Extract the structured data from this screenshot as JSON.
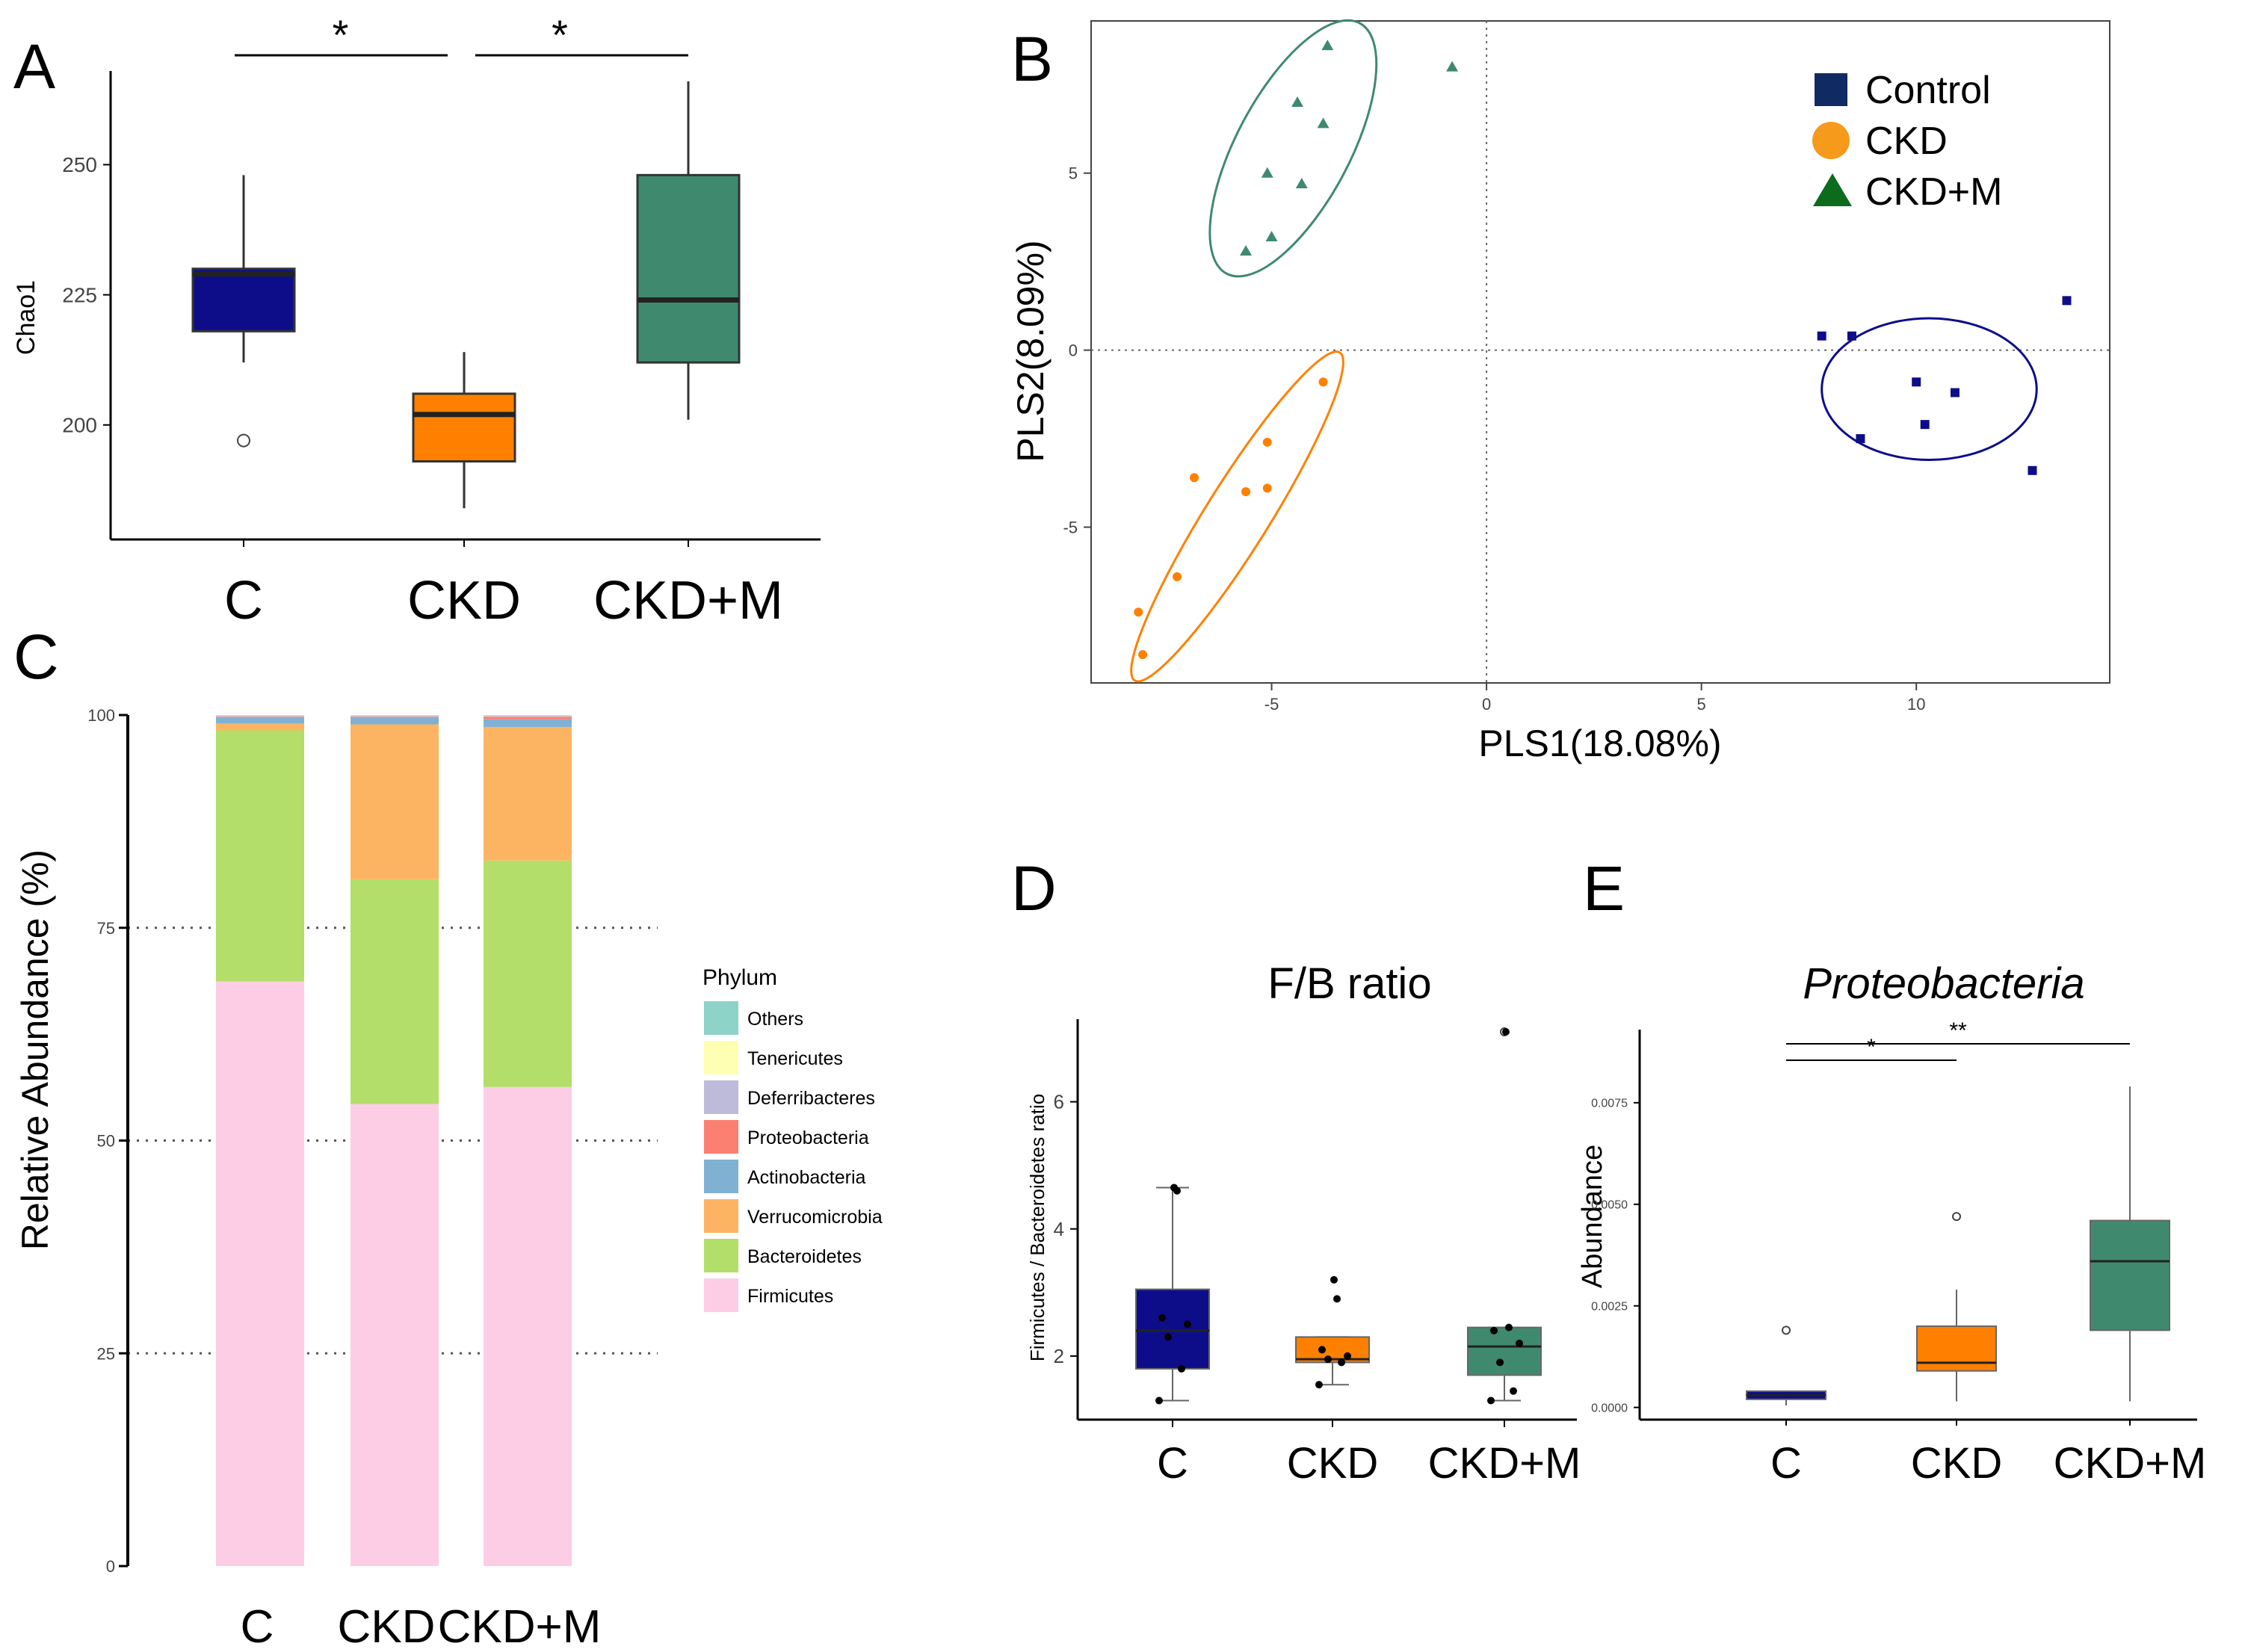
{
  "colors": {
    "control": "#0d0d8a",
    "ckd": "#ff8000",
    "ckdm": "#3f8a6e",
    "legend_control": "#102a63",
    "legend_ckd": "#f59a1b",
    "legend_ckdm": "#0d6b1c",
    "axis": "#000000",
    "grid_dotted": "#666666"
  },
  "chart_data": [
    {
      "panel": "A",
      "type": "box",
      "panel_label": "A",
      "ylabel": "Chao1",
      "categories": [
        "C",
        "CKD",
        "CKD+M"
      ],
      "ylim": [
        178,
        268
      ],
      "yticks": [
        200,
        225,
        250
      ],
      "boxes": [
        {
          "group": "C",
          "whisker_low": 212,
          "q1": 218,
          "median": 229,
          "q3": 230,
          "whisker_high": 248,
          "outliers": [
            197
          ],
          "color_key": "control"
        },
        {
          "group": "CKD",
          "whisker_low": 184,
          "q1": 193,
          "median": 202,
          "q3": 206,
          "whisker_high": 214,
          "outliers": [],
          "color_key": "ckd"
        },
        {
          "group": "CKD+M",
          "whisker_low": 201,
          "q1": 212,
          "median": 224,
          "q3": 248,
          "whisker_high": 266,
          "outliers": [],
          "color_key": "ckdm"
        }
      ],
      "significance": [
        {
          "from": "C",
          "to": "CKD",
          "label": "*"
        },
        {
          "from": "CKD",
          "to": "CKD+M",
          "label": "*"
        }
      ]
    },
    {
      "panel": "B",
      "type": "scatter",
      "panel_label": "B",
      "xlabel": "PLS1(18.08%)",
      "ylabel": "PLS2(8.09%)",
      "xlim": [
        -9.2,
        14.5
      ],
      "ylim": [
        -9.4,
        9.3
      ],
      "xticks": [
        -5,
        0,
        5,
        10
      ],
      "yticks": [
        -5,
        0,
        5
      ],
      "legend_position": "top-right",
      "series": [
        {
          "name": "Control",
          "marker": "square",
          "color_key": "control",
          "legend_color_key": "legend_control",
          "x": [
            7.8,
            8.5,
            8.7,
            10.0,
            10.2,
            10.9,
            12.7,
            13.5
          ],
          "y": [
            0.4,
            0.4,
            -2.5,
            -0.9,
            -2.1,
            -1.2,
            -3.4,
            1.4
          ],
          "ellipse": {
            "cx": 10.3,
            "cy": -1.1,
            "rx": 2.5,
            "ry": 2.0,
            "angle": 0
          }
        },
        {
          "name": "CKD",
          "marker": "circle",
          "color_key": "ckd",
          "legend_color_key": "legend_ckd",
          "x": [
            -3.8,
            -5.1,
            -5.1,
            -5.6,
            -6.8,
            -7.2,
            -8.1,
            -8.0
          ],
          "y": [
            -0.9,
            -2.6,
            -3.9,
            -4.0,
            -3.6,
            -6.4,
            -7.4,
            -8.6
          ],
          "ellipse": {
            "cx": -5.8,
            "cy": -4.7,
            "rx": 4.5,
            "ry": 0.9,
            "angle": 58
          }
        },
        {
          "name": "CKD+M",
          "marker": "triangle",
          "color_key": "ckdm",
          "legend_color_key": "legend_ckdm",
          "x": [
            -3.7,
            -4.4,
            -3.8,
            -5.1,
            -4.3,
            -5.0,
            -5.6,
            -0.8
          ],
          "y": [
            8.6,
            7.0,
            6.4,
            5.0,
            4.7,
            3.2,
            2.8,
            8.0
          ],
          "ellipse": {
            "cx": -4.5,
            "cy": 5.7,
            "rx": 3.3,
            "ry": 1.6,
            "angle": 62
          }
        }
      ]
    },
    {
      "panel": "C",
      "type": "stacked_bar",
      "panel_label": "C",
      "ylabel": "Relative Abundance (%)",
      "categories": [
        "C",
        "CKD",
        "CKD+M"
      ],
      "ylim": [
        0,
        100
      ],
      "yticks": [
        0,
        25,
        50,
        75,
        100
      ],
      "legend_title": "Phylum",
      "legend_position": "right",
      "legend_order": [
        "Others",
        "Tenericutes",
        "Deferribacteres",
        "Proteobacteria",
        "Actinobacteria",
        "Verrucomicrobia",
        "Bacteroidetes",
        "Firmicutes"
      ],
      "series": [
        {
          "name": "Firmicutes",
          "color": "#fccde5",
          "values": [
            68.7,
            54.3,
            56.3
          ]
        },
        {
          "name": "Bacteroidetes",
          "color": "#b3de69",
          "values": [
            29.5,
            26.4,
            26.6
          ]
        },
        {
          "name": "Verrucomicrobia",
          "color": "#fdb462",
          "values": [
            0.8,
            18.2,
            15.7
          ]
        },
        {
          "name": "Actinobacteria",
          "color": "#80b1d3",
          "values": [
            0.7,
            0.8,
            0.9
          ]
        },
        {
          "name": "Proteobacteria",
          "color": "#fb8072",
          "values": [
            0.1,
            0.1,
            0.3
          ]
        },
        {
          "name": "Deferribacteres",
          "color": "#bebada",
          "values": [
            0.1,
            0.1,
            0.1
          ]
        },
        {
          "name": "Tenericutes",
          "color": "#ffffb3",
          "values": [
            0.05,
            0.05,
            0.05
          ]
        },
        {
          "name": "Others",
          "color": "#8dd3c7",
          "values": [
            0.05,
            0.05,
            0.05
          ]
        }
      ]
    },
    {
      "panel": "D",
      "type": "box",
      "panel_label": "D",
      "title": "F/B ratio",
      "ylabel": "Firmicutes / Bacteroidetes ratio",
      "categories": [
        "C",
        "CKD",
        "CKD+M"
      ],
      "ylim": [
        1.0,
        7.3
      ],
      "yticks": [
        2,
        4,
        6
      ],
      "boxes": [
        {
          "group": "C",
          "whisker_low": 1.3,
          "q1": 1.8,
          "median": 2.4,
          "q3": 3.05,
          "whisker_high": 4.65,
          "outliers": [],
          "color_key": "control",
          "points": [
            1.3,
            1.8,
            2.3,
            2.5,
            2.6,
            4.6,
            4.65
          ]
        },
        {
          "group": "CKD",
          "whisker_low": 1.55,
          "q1": 1.9,
          "median": 1.95,
          "q3": 2.3,
          "whisker_high": 2.3,
          "outliers": [],
          "color_key": "ckd",
          "points": [
            1.55,
            1.9,
            1.95,
            2.0,
            2.1,
            2.9,
            3.2
          ]
        },
        {
          "group": "CKD+M",
          "whisker_low": 1.3,
          "q1": 1.7,
          "median": 2.15,
          "q3": 2.45,
          "whisker_high": 2.45,
          "outliers": [
            7.1
          ],
          "color_key": "ckdm",
          "points": [
            1.3,
            1.45,
            1.9,
            2.2,
            2.4,
            2.45,
            7.1
          ]
        }
      ]
    },
    {
      "panel": "E",
      "type": "box",
      "panel_label": "E",
      "title": "Proteobacteria",
      "ylabel": "Abundance",
      "categories": [
        "C",
        "CKD",
        "CKD+M"
      ],
      "ylim": [
        -0.0003,
        0.0093
      ],
      "yticks": [
        0.0,
        0.0025,
        0.005,
        0.0075
      ],
      "ytick_labels": [
        "0.0000",
        "0.0025",
        "0.0050",
        "0.0075"
      ],
      "boxes": [
        {
          "group": "C",
          "whisker_low": 5e-05,
          "q1": 0.0002,
          "median": 0.0003,
          "q3": 0.0004,
          "whisker_high": 0.0004,
          "outliers": [
            0.0019
          ],
          "color_key": "control"
        },
        {
          "group": "CKD",
          "whisker_low": 0.00015,
          "q1": 0.0009,
          "median": 0.0011,
          "q3": 0.002,
          "whisker_high": 0.0029,
          "outliers": [
            0.0047
          ],
          "color_key": "ckd"
        },
        {
          "group": "CKD+M",
          "whisker_low": 0.00015,
          "q1": 0.0019,
          "median": 0.0036,
          "q3": 0.0046,
          "whisker_high": 0.0079,
          "outliers": [],
          "color_key": "ckdm"
        }
      ],
      "significance": [
        {
          "from": "C",
          "to": "CKD",
          "label": "*"
        },
        {
          "from": "C",
          "to": "CKD+M",
          "label": "**"
        }
      ]
    }
  ]
}
